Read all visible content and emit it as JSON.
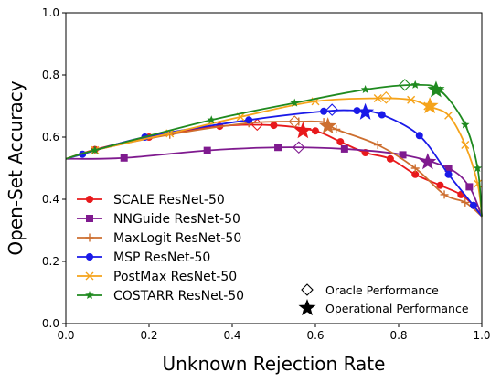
{
  "chart_data": {
    "type": "line",
    "title": "",
    "xlabel": "Unknown Rejection Rate",
    "ylabel": "Open-Set Accuracy",
    "xlim": [
      0.0,
      1.0
    ],
    "ylim": [
      0.0,
      1.0
    ],
    "xticks": [
      "0.0",
      "0.2",
      "0.4",
      "0.6",
      "0.8",
      "1.0"
    ],
    "yticks": [
      "0.0",
      "0.2",
      "0.4",
      "0.6",
      "0.8",
      "1.0"
    ],
    "grid": false,
    "legend_position": "bottom-left",
    "series": [
      {
        "name": "SCALE ResNet-50",
        "color": "#e8191c",
        "marker": "circle",
        "x": [
          0.0,
          0.07,
          0.2,
          0.37,
          0.5,
          0.6,
          0.66,
          0.72,
          0.78,
          0.84,
          0.9,
          0.95,
          0.98,
          1.0
        ],
        "y": [
          0.53,
          0.56,
          0.6,
          0.635,
          0.638,
          0.62,
          0.585,
          0.55,
          0.53,
          0.48,
          0.445,
          0.415,
          0.38,
          0.345
        ],
        "oracle": {
          "x": 0.46,
          "y": 0.64
        },
        "operational": {
          "x": 0.57,
          "y": 0.62
        }
      },
      {
        "name": "NNGuide ResNet-50",
        "color": "#7f1a8f",
        "marker": "square",
        "x": [
          0.0,
          0.14,
          0.34,
          0.51,
          0.67,
          0.81,
          0.92,
          0.97,
          1.0
        ],
        "y": [
          0.53,
          0.533,
          0.557,
          0.567,
          0.562,
          0.543,
          0.5,
          0.44,
          0.345
        ],
        "oracle": {
          "x": 0.56,
          "y": 0.567
        },
        "operational": {
          "x": 0.87,
          "y": 0.52
        }
      },
      {
        "name": "MaxLogit ResNet-50",
        "color": "#cd6f30",
        "marker": "plus",
        "x": [
          0.0,
          0.07,
          0.25,
          0.44,
          0.56,
          0.62,
          0.65,
          0.75,
          0.84,
          0.91,
          0.96,
          1.0
        ],
        "y": [
          0.53,
          0.558,
          0.608,
          0.645,
          0.65,
          0.648,
          0.625,
          0.575,
          0.5,
          0.415,
          0.39,
          0.345
        ],
        "oracle": {
          "x": 0.55,
          "y": 0.65
        },
        "operational": {
          "x": 0.63,
          "y": 0.635
        }
      },
      {
        "name": "MSP ResNet-50",
        "color": "#1a1ae8",
        "marker": "circle",
        "x": [
          0.0,
          0.04,
          0.19,
          0.44,
          0.62,
          0.7,
          0.76,
          0.85,
          0.92,
          0.98,
          1.0
        ],
        "y": [
          0.53,
          0.545,
          0.6,
          0.655,
          0.683,
          0.685,
          0.672,
          0.605,
          0.48,
          0.38,
          0.345
        ],
        "oracle": {
          "x": 0.64,
          "y": 0.688
        },
        "operational": {
          "x": 0.72,
          "y": 0.68
        }
      },
      {
        "name": "PostMax ResNet-50",
        "color": "#f5a31a",
        "marker": "x",
        "x": [
          0.0,
          0.07,
          0.25,
          0.42,
          0.6,
          0.75,
          0.83,
          0.87,
          0.92,
          0.96,
          0.99,
          1.0
        ],
        "y": [
          0.53,
          0.558,
          0.612,
          0.665,
          0.715,
          0.725,
          0.72,
          0.7,
          0.67,
          0.575,
          0.45,
          0.345
        ],
        "oracle": {
          "x": 0.77,
          "y": 0.727
        },
        "operational": {
          "x": 0.875,
          "y": 0.7
        }
      },
      {
        "name": "COSTARR ResNet-50",
        "color": "#1f8a1f",
        "marker": "star",
        "x": [
          0.0,
          0.07,
          0.35,
          0.55,
          0.72,
          0.84,
          0.9,
          0.96,
          0.99,
          1.0
        ],
        "y": [
          0.53,
          0.558,
          0.655,
          0.71,
          0.753,
          0.768,
          0.75,
          0.64,
          0.5,
          0.345
        ],
        "oracle": {
          "x": 0.815,
          "y": 0.768
        },
        "operational": {
          "x": 0.89,
          "y": 0.752
        }
      }
    ],
    "marker_legend": [
      {
        "label": "Oracle Performance",
        "marker": "diamond-open"
      },
      {
        "label": "Operational Performance",
        "marker": "star-filled"
      }
    ]
  }
}
